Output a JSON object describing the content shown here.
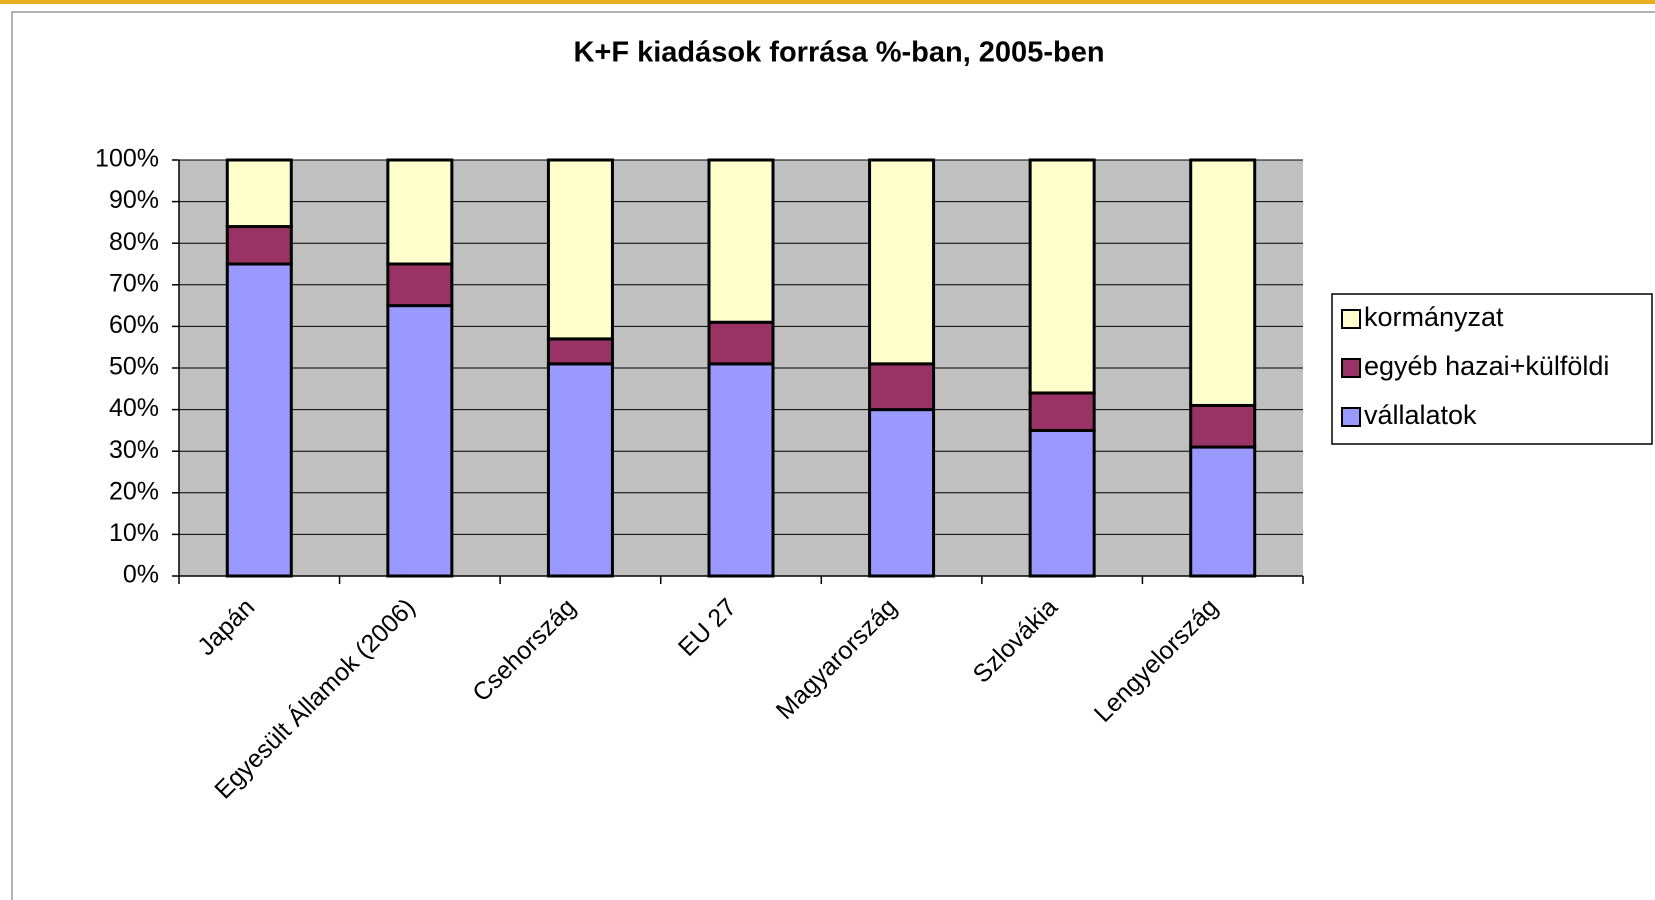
{
  "chart_data": {
    "type": "stacked_bar",
    "title": "K+F kiadások forrása %-ban, 2005-ben",
    "categories": [
      "Japán",
      "Egyesült Államok (2006)",
      "Csehország",
      "EU 27",
      "Magyarország",
      "Szlovákia",
      "Lengyelország"
    ],
    "series": [
      {
        "name": "vállalatok",
        "color": "#9999ff",
        "values": [
          75,
          65,
          51,
          51,
          40,
          35,
          31
        ]
      },
      {
        "name": "egyéb hazai+külföldi",
        "color": "#993366",
        "values": [
          9,
          10,
          6,
          10,
          11,
          9,
          10
        ]
      },
      {
        "name": "kormányzat",
        "color": "#ffffcc",
        "values": [
          16,
          25,
          43,
          39,
          49,
          56,
          59
        ]
      }
    ],
    "ylim": [
      0,
      100
    ],
    "yticks": [
      {
        "value": 0,
        "label": "0%"
      },
      {
        "value": 10,
        "label": "10%"
      },
      {
        "value": 20,
        "label": "20%"
      },
      {
        "value": 30,
        "label": "30%"
      },
      {
        "value": 40,
        "label": "40%"
      },
      {
        "value": 50,
        "label": "50%"
      },
      {
        "value": 60,
        "label": "60%"
      },
      {
        "value": 70,
        "label": "70%"
      },
      {
        "value": 80,
        "label": "80%"
      },
      {
        "value": 90,
        "label": "90%"
      },
      {
        "value": 100,
        "label": "100%"
      }
    ],
    "grid": true,
    "plot_background": "#c0c0c0",
    "legend": "right"
  }
}
